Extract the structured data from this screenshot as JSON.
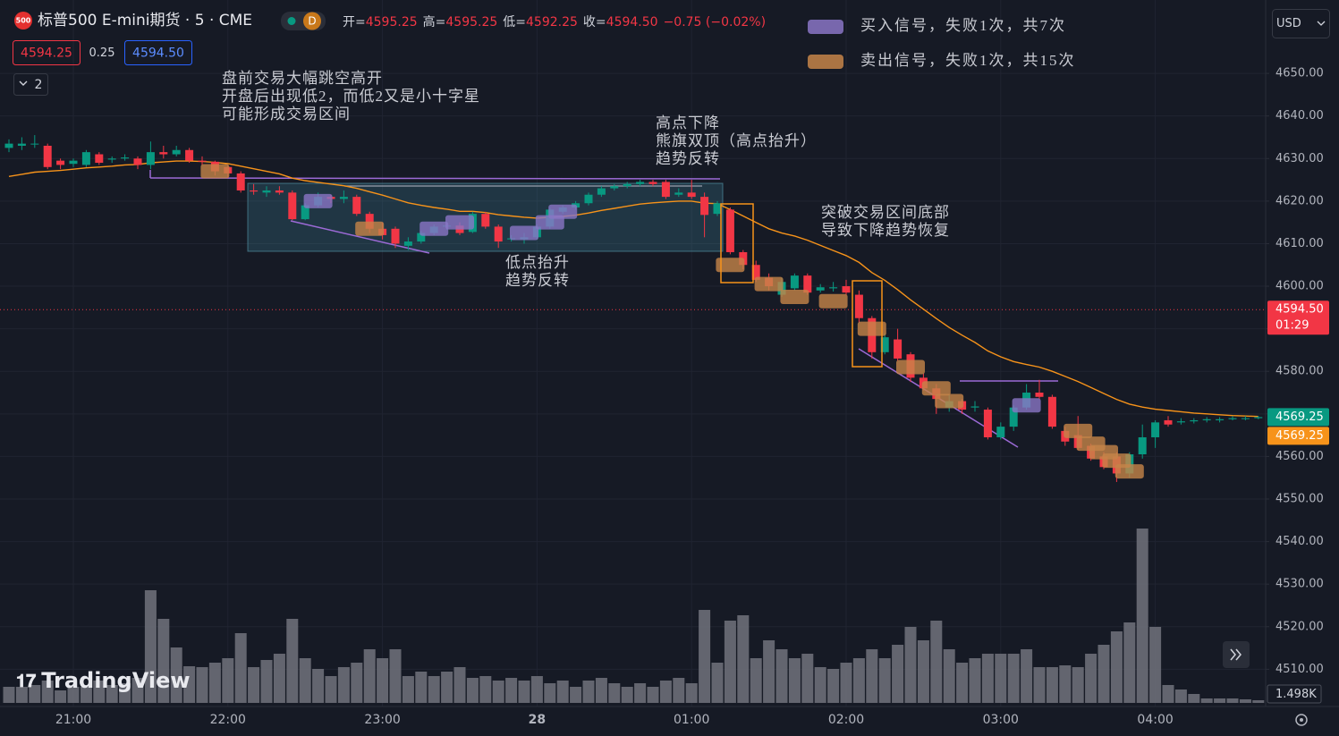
{
  "header": {
    "symbol_icon": "500",
    "title": "标普500 E-mini期货 · 5 · CME",
    "interval_badge": "D",
    "ohlc": [
      {
        "label": "开=",
        "value": "4595.25"
      },
      {
        "label": "高=",
        "value": "4595.25"
      },
      {
        "label": "低=",
        "value": "4592.25"
      },
      {
        "label": "收=",
        "value": "4594.50"
      }
    ],
    "change": "−0.75 (−0.02%)",
    "bid": "4594.25",
    "spread": "0.25",
    "ask": "4594.50",
    "collapse": "2",
    "currency": "USD",
    "logo": "TradingView"
  },
  "chart_data": {
    "type": "candlestick",
    "categories": [
      null,
      null,
      null,
      null,
      null,
      "21:00",
      null,
      null,
      null,
      null,
      null,
      null,
      null,
      null,
      null,
      null,
      null,
      "22:00",
      null,
      null,
      null,
      null,
      null,
      null,
      null,
      null,
      null,
      null,
      null,
      "23:00",
      null,
      null,
      null,
      null,
      null,
      null,
      null,
      null,
      null,
      null,
      null,
      "28",
      null,
      null,
      null,
      null,
      null,
      null,
      null,
      null,
      null,
      null,
      null,
      "01:00",
      null,
      null,
      null,
      null,
      null,
      null,
      null,
      null,
      null,
      null,
      null,
      "02:00",
      null,
      null,
      null,
      null,
      null,
      null,
      null,
      null,
      null,
      null,
      null,
      "03:00",
      null,
      null,
      null,
      null,
      null,
      null,
      null,
      null,
      null,
      null,
      null,
      "04:00",
      null,
      null,
      null,
      null,
      null,
      null,
      null,
      null
    ],
    "open": [
      4632.5,
      4633,
      4633.5,
      4633,
      4629.5,
      4628.75,
      4628.5,
      4631,
      4629.75,
      4630,
      4630,
      4628.5,
      4631.5,
      4631,
      4632,
      4629.5,
      4629.25,
      4628,
      4626.5,
      4622.5,
      4622,
      4622.5,
      4622,
      4615.75,
      4619,
      4621,
      4620.5,
      4621,
      4617,
      4613.5,
      4613.5,
      4609.5,
      4610.5,
      4612.5,
      4614,
      4614.25,
      4612.75,
      4617,
      4614,
      4611,
      4611,
      4611.5,
      4614,
      4617.5,
      4618.5,
      4619.5,
      4621.5,
      4623,
      4623.5,
      4624,
      4624.5,
      4624.5,
      4621.5,
      4622,
      4621,
      4617,
      4618,
      4608,
      4605,
      4602,
      4598,
      4599.5,
      4602.5,
      4599,
      4599.5,
      4600,
      4598,
      4592.5,
      4584.5,
      4587.5,
      4584,
      4578.5,
      4576,
      4571.5,
      4573,
      4571.5,
      4571,
      4564.5,
      4567,
      4571.5,
      4575,
      4574,
      4566,
      4565,
      4562.5,
      4560,
      4560,
      4556,
      4560.5,
      4564.5,
      4568.5,
      4568,
      4568.25,
      4568.5,
      4568.5,
      4568.75,
      4569,
      4569
    ],
    "high": [
      4634.5,
      4635,
      4635.5,
      4633.5,
      4630,
      4630,
      4632,
      4631.5,
      4630.5,
      4631,
      4630.5,
      4634,
      4633,
      4633,
      4632.5,
      4630.5,
      4629.5,
      4628.5,
      4627,
      4624,
      4623.5,
      4623.5,
      4622.5,
      4619.5,
      4622,
      4621.5,
      4622.5,
      4621.5,
      4617.5,
      4615,
      4614,
      4611.5,
      4613,
      4614.5,
      4615,
      4615,
      4617.5,
      4617.5,
      4614.5,
      4612,
      4612.5,
      4614.5,
      4618.5,
      4619,
      4620,
      4622,
      4623.5,
      4624,
      4624.5,
      4625,
      4625,
      4625,
      4623,
      4625,
      4622,
      4620,
      4618.5,
      4608.5,
      4606,
      4603,
      4602,
      4603,
      4603,
      4600.5,
      4601,
      4601.5,
      4599,
      4593,
      4589,
      4590,
      4584.5,
      4579.5,
      4577,
      4574.5,
      4573.5,
      4573,
      4571.5,
      4568,
      4572,
      4577,
      4578,
      4574.5,
      4567,
      4569.5,
      4563,
      4561,
      4561,
      4561,
      4567.5,
      4568.5,
      4569.5,
      4569,
      4569,
      4569.25,
      4569.25,
      4569.5,
      4569.5,
      4569.5
    ],
    "low": [
      4631.5,
      4632,
      4632.5,
      4627.5,
      4627.5,
      4628,
      4628,
      4628.5,
      4629,
      4629.5,
      4627.5,
      4627.5,
      4630,
      4630.5,
      4629,
      4628.5,
      4626,
      4625.5,
      4622,
      4621.5,
      4621,
      4621.5,
      4615.5,
      4615.5,
      4618.5,
      4619.5,
      4619.5,
      4616.5,
      4612.5,
      4611,
      4609,
      4608.5,
      4610,
      4612,
      4613.25,
      4612,
      4612.5,
      4613.5,
      4609,
      4610.5,
      4610,
      4611,
      4613.5,
      4617,
      4618,
      4619,
      4621,
      4622.5,
      4623,
      4623.5,
      4623.5,
      4620.5,
      4621,
      4620.5,
      4611.5,
      4616.5,
      4607.5,
      4604,
      4601,
      4599,
      4597.5,
      4599,
      4598,
      4598.5,
      4598.75,
      4598,
      4591.5,
      4583,
      4584,
      4582.5,
      4577.5,
      4575.5,
      4570,
      4570.5,
      4570,
      4570.5,
      4564,
      4564,
      4566,
      4571,
      4573.5,
      4566.5,
      4562.5,
      4561.5,
      4559,
      4557,
      4554,
      4555,
      4559.5,
      4562,
      4567,
      4567.5,
      4567.75,
      4568,
      4568,
      4568.5,
      4568.5,
      4568.75
    ],
    "close": [
      4633.5,
      4633.5,
      4633.5,
      4628,
      4628.5,
      4629.5,
      4631.5,
      4629,
      4630,
      4630.25,
      4628.5,
      4631.5,
      4631,
      4632,
      4629.5,
      4629.25,
      4627,
      4626.5,
      4622.5,
      4622.25,
      4622.5,
      4622,
      4615.75,
      4619,
      4621,
      4620.5,
      4621,
      4617,
      4613.5,
      4612,
      4610,
      4610.5,
      4612.5,
      4614,
      4614.25,
      4612.5,
      4617,
      4614,
      4610.5,
      4611.25,
      4611.5,
      4614,
      4618,
      4618.5,
      4619.5,
      4621.5,
      4623,
      4623.5,
      4624,
      4624.5,
      4624,
      4621,
      4622,
      4621,
      4616.75,
      4619.5,
      4608,
      4605,
      4601.5,
      4600,
      4601,
      4602.5,
      4598.5,
      4599.75,
      4599.75,
      4598.5,
      4592.5,
      4584.5,
      4588,
      4583,
      4578.5,
      4576,
      4573.5,
      4573,
      4571,
      4571.75,
      4564.5,
      4567,
      4571.5,
      4575,
      4574,
      4567,
      4563.5,
      4562,
      4559.5,
      4557.5,
      4556,
      4560.5,
      4564.5,
      4568,
      4567.5,
      4568.25,
      4568.5,
      4568.75,
      4568.75,
      4569,
      4569,
      4569.25
    ],
    "volume": [
      9000,
      9000,
      10000,
      12500,
      7000,
      9000,
      9000,
      12500,
      10000,
      11000,
      14000,
      63000,
      47000,
      31000,
      20500,
      20000,
      22500,
      25000,
      39000,
      20000,
      24000,
      27500,
      47000,
      25000,
      19000,
      15000,
      20000,
      22500,
      30000,
      25000,
      30000,
      15000,
      17500,
      15000,
      17500,
      20000,
      14000,
      15000,
      12500,
      14000,
      12500,
      15000,
      11000,
      12500,
      9000,
      12500,
      14000,
      11000,
      9000,
      11000,
      9000,
      12500,
      14000,
      11000,
      52000,
      22500,
      46000,
      49000,
      25000,
      35000,
      30000,
      25000,
      27500,
      20000,
      19000,
      22500,
      25000,
      30000,
      25000,
      32500,
      42500,
      35000,
      46000,
      30000,
      22500,
      25000,
      27500,
      27500,
      27500,
      30000,
      20000,
      20000,
      21000,
      20000,
      27500,
      32500,
      40000,
      45000,
      97500,
      42500,
      10000,
      7500,
      5000,
      2500,
      2500,
      2500,
      2000,
      1498
    ],
    "last_volume_label": "1.498K",
    "ema": {
      "color": "#f7931a",
      "values": [
        4625.8,
        4626.3,
        4626.8,
        4627,
        4627.2,
        4627.5,
        4627.8,
        4628,
        4628.2,
        4628.5,
        4628.6,
        4629,
        4629.2,
        4629.4,
        4629.4,
        4629.3,
        4629.1,
        4628.8,
        4628.2,
        4627.6,
        4627,
        4626.4,
        4625.4,
        4624.8,
        4624.4,
        4624,
        4623.6,
        4623,
        4622.2,
        4621.4,
        4620.5,
        4619.6,
        4619,
        4618.5,
        4618.1,
        4617.6,
        4617.6,
        4617.3,
        4616.8,
        4616.5,
        4616.2,
        4616,
        4616.2,
        4616.4,
        4616.7,
        4617.2,
        4617.8,
        4618.3,
        4618.8,
        4619.3,
        4619.6,
        4619.8,
        4620,
        4620,
        4619.5,
        4619.4,
        4618,
        4616.5,
        4615,
        4613.5,
        4612.5,
        4611.8,
        4610.8,
        4609.6,
        4608.4,
        4607.2,
        4605.6,
        4603.2,
        4601.4,
        4599.2,
        4596.8,
        4594.6,
        4592.4,
        4590.3,
        4588.5,
        4586.8,
        4584.8,
        4583.4,
        4582.3,
        4581.6,
        4581,
        4580,
        4578.8,
        4577.6,
        4576.2,
        4574.8,
        4573.4,
        4572.3,
        4571.6,
        4571.1,
        4570.8,
        4570.5,
        4570.2,
        4570,
        4569.8,
        4569.6,
        4569.5,
        4569.4
      ]
    },
    "up_color": "#089981",
    "down_color": "#f23645",
    "volume_color": "#6b6e78",
    "signals": [
      {
        "name": "买入信号，失败1次，共7次",
        "color": "#8a76c6",
        "index": [
          24,
          33,
          35,
          40,
          42,
          43,
          79
        ],
        "price": [
          4620,
          4613.5,
          4615,
          4612.5,
          4615,
          4617.5,
          4572
        ]
      },
      {
        "name": "卖出信号，失败1次，共15次",
        "color": "#c58549",
        "index": [
          16,
          28,
          56,
          59,
          61,
          64,
          67,
          70,
          72,
          73,
          83,
          84,
          85,
          86,
          87
        ],
        "price": [
          4627,
          4613.5,
          4605,
          4600.5,
          4597.5,
          4596.5,
          4590,
          4581,
          4576,
          4573,
          4566,
          4563,
          4561,
          4559,
          4556.5
        ]
      }
    ],
    "price_labels": [
      {
        "value": 4594.5,
        "label": "4594.50",
        "sub": "01:29",
        "color": "#f23645"
      },
      {
        "value": 4569.25,
        "label": "4569.25",
        "color": "#089981"
      },
      {
        "value": 4569.25,
        "label": "4569.25",
        "color": "#f7931a"
      }
    ],
    "annotations": [
      [
        "盘前交易大幅跳空高开",
        "开盘后出现低2，而低2又是小十字星",
        "可能形成交易区间"
      ],
      [
        "高点下降",
        "熊旗双顶（高点抬升）",
        "趋势反转"
      ],
      [
        "低点抬升",
        "趋势反转"
      ],
      [
        "突破交易区间底部",
        "导致下降趋势恢复"
      ]
    ],
    "ylim": [
      4501.25,
      4667.25
    ],
    "yticks": [
      {
        "value": 4510,
        "label": "4510.00"
      },
      {
        "value": 4520,
        "label": "4520.00"
      },
      {
        "value": 4530,
        "label": "4530.00"
      },
      {
        "value": 4540,
        "label": "4540.00"
      },
      {
        "value": 4550,
        "label": "4550.00"
      },
      {
        "value": 4560,
        "label": "4560.00"
      },
      {
        "value": 4570,
        "label": "4570.00"
      },
      {
        "value": 4580,
        "label": "4580.00"
      },
      {
        "value": 4590,
        "label": "4590.00"
      },
      {
        "value": 4600,
        "label": "4600.00"
      },
      {
        "value": 4610,
        "label": "4610.00"
      },
      {
        "value": 4620,
        "label": "4620.00"
      },
      {
        "value": 4630,
        "label": "4630.00"
      },
      {
        "value": 4640,
        "label": "4640.00"
      },
      {
        "value": 4650,
        "label": "4650.00"
      }
    ],
    "grid": true
  }
}
